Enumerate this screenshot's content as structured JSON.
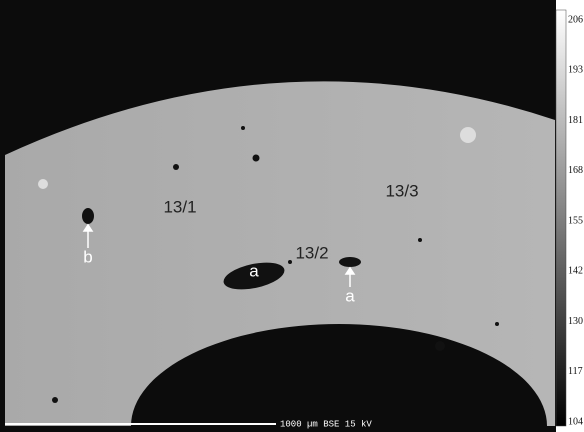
{
  "labels": [
    "13/1",
    "13/2",
    "13/3",
    "a",
    "a",
    "b"
  ],
  "colorbar": {
    "ticks": [
      206,
      193,
      181,
      168,
      155,
      142,
      130,
      117,
      104
    ]
  },
  "scale_bar": "1000 µm BSE 15 kV"
}
